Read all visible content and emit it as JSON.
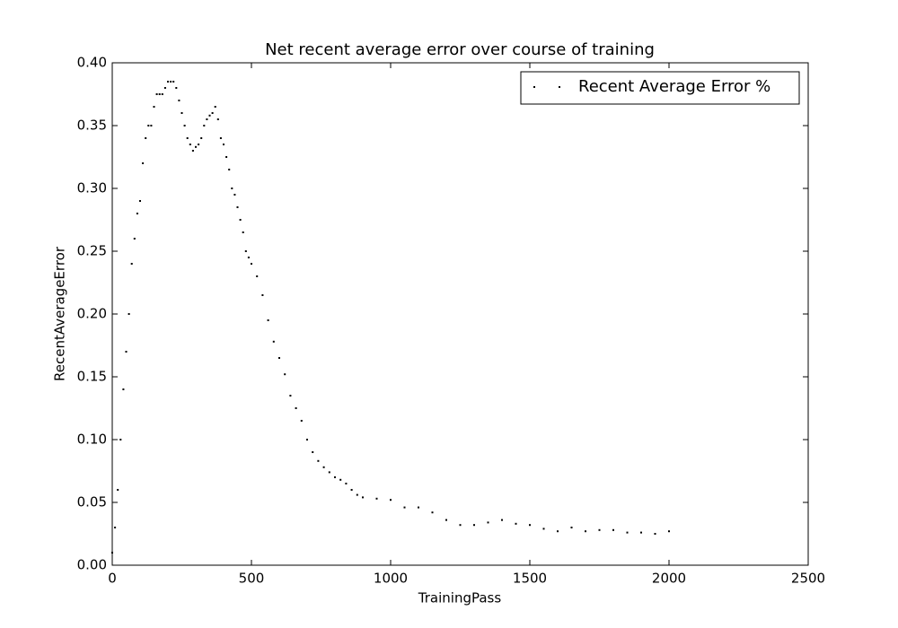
{
  "chart_data": {
    "type": "scatter",
    "title": "Net recent average error over course of training",
    "x_label": "TrainingPass",
    "y_label": "RecentAverageError",
    "legend": "upper right",
    "grid": false,
    "xlim": [
      0,
      2500
    ],
    "xticks": [
      0,
      500,
      1000,
      1500,
      2000,
      2500
    ],
    "ylim": [
      0,
      0.4
    ],
    "yticks": [
      {
        "value": 0,
        "label": "0.00"
      },
      {
        "value": 0.05,
        "label": "0.05"
      },
      {
        "value": 0.1,
        "label": "0.10"
      },
      {
        "value": 0.15,
        "label": "0.15"
      },
      {
        "value": 0.2,
        "label": "0.20"
      },
      {
        "value": 0.25,
        "label": "0.25"
      },
      {
        "value": 0.3,
        "label": "0.30"
      },
      {
        "value": 0.35,
        "label": "0.35"
      },
      {
        "value": 0.4,
        "label": "0.40"
      }
    ],
    "series": [
      {
        "name": "Recent Average Error %",
        "color": "#000000",
        "x": [
          0,
          10,
          20,
          30,
          40,
          50,
          60,
          70,
          80,
          90,
          100,
          110,
          120,
          130,
          140,
          150,
          160,
          170,
          180,
          190,
          200,
          210,
          220,
          230,
          240,
          250,
          260,
          270,
          280,
          290,
          300,
          310,
          320,
          330,
          340,
          350,
          360,
          370,
          380,
          390,
          400,
          410,
          420,
          430,
          440,
          450,
          460,
          470,
          480,
          490,
          500,
          520,
          540,
          560,
          580,
          600,
          620,
          640,
          660,
          680,
          700,
          720,
          740,
          760,
          780,
          800,
          820,
          840,
          860,
          880,
          900,
          950,
          1000,
          1050,
          1100,
          1150,
          1200,
          1250,
          1300,
          1350,
          1400,
          1450,
          1500,
          1550,
          1600,
          1650,
          1700,
          1750,
          1800,
          1850,
          1900,
          1950,
          2000
        ],
        "values": [
          0.01,
          0.03,
          0.06,
          0.1,
          0.14,
          0.17,
          0.2,
          0.24,
          0.26,
          0.28,
          0.29,
          0.32,
          0.34,
          0.35,
          0.35,
          0.365,
          0.375,
          0.375,
          0.375,
          0.38,
          0.385,
          0.385,
          0.385,
          0.38,
          0.37,
          0.36,
          0.35,
          0.34,
          0.335,
          0.33,
          0.333,
          0.335,
          0.34,
          0.35,
          0.355,
          0.358,
          0.36,
          0.365,
          0.355,
          0.34,
          0.335,
          0.325,
          0.315,
          0.3,
          0.295,
          0.285,
          0.275,
          0.265,
          0.25,
          0.245,
          0.24,
          0.23,
          0.215,
          0.195,
          0.178,
          0.165,
          0.152,
          0.135,
          0.125,
          0.115,
          0.1,
          0.09,
          0.083,
          0.078,
          0.074,
          0.07,
          0.068,
          0.065,
          0.06,
          0.056,
          0.054,
          0.053,
          0.052,
          0.046,
          0.046,
          0.042,
          0.036,
          0.032,
          0.032,
          0.034,
          0.036,
          0.033,
          0.032,
          0.029,
          0.027,
          0.03,
          0.027,
          0.028,
          0.028,
          0.026,
          0.026,
          0.025,
          0.027
        ]
      }
    ]
  }
}
